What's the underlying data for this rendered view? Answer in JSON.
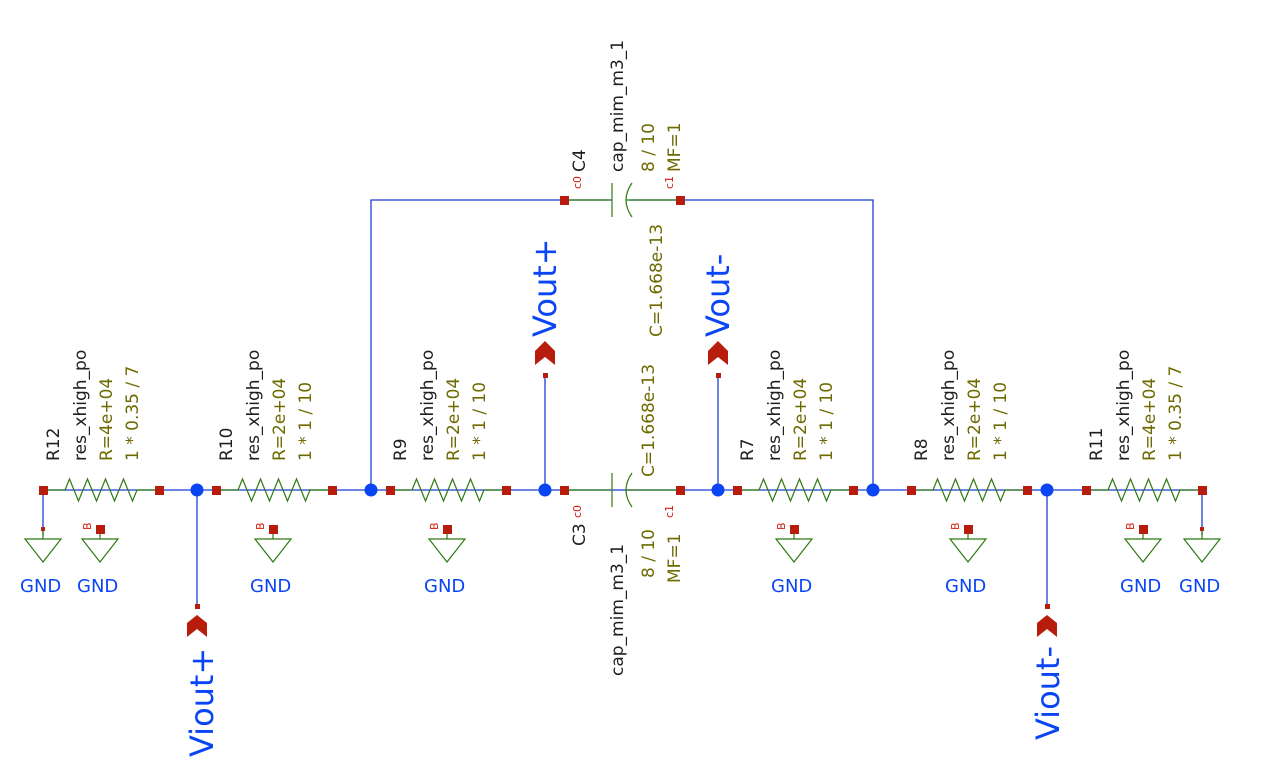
{
  "resistors": [
    {
      "ref": "R12",
      "model": "res_xhigh_po",
      "value": "R=4e+04",
      "dims": "1 * 0.35 / 7",
      "bulk_pin": "B",
      "bulk_net": "GND"
    },
    {
      "ref": "R10",
      "model": "res_xhigh_po",
      "value": "R=2e+04",
      "dims": "1 * 1 / 10",
      "bulk_pin": "B",
      "bulk_net": "GND"
    },
    {
      "ref": "R9",
      "model": "res_xhigh_po",
      "value": "R=2e+04",
      "dims": "1 * 1 / 10",
      "bulk_pin": "B",
      "bulk_net": "GND"
    },
    {
      "ref": "R7",
      "model": "res_xhigh_po",
      "value": "R=2e+04",
      "dims": "1 * 1 / 10",
      "bulk_pin": "B",
      "bulk_net": "GND"
    },
    {
      "ref": "R8",
      "model": "res_xhigh_po",
      "value": "R=2e+04",
      "dims": "1 * 1 / 10",
      "bulk_pin": "B",
      "bulk_net": "GND"
    },
    {
      "ref": "R11",
      "model": "res_xhigh_po",
      "value": "R=4e+04",
      "dims": "1 * 0.35 / 7",
      "bulk_pin": "B",
      "bulk_net": "GND"
    }
  ],
  "capacitors": [
    {
      "ref": "C4",
      "model": "cap_mim_m3_1",
      "value": "C=1.668e-13",
      "dims": "8 / 10",
      "mf": "MF=1",
      "pin0": "c0",
      "pin1": "c1"
    },
    {
      "ref": "C3",
      "model": "cap_mim_m3_1",
      "value": "C=1.668e-13",
      "dims": "8 / 10",
      "mf": "MF=1",
      "pin0": "c0",
      "pin1": "c1"
    }
  ],
  "end_grounds": [
    "GND",
    "GND"
  ],
  "ports": {
    "vout_plus": "Vout+",
    "vout_minus": "Vout-",
    "viout_plus": "Viout+",
    "viout_minus": "Viout-"
  }
}
